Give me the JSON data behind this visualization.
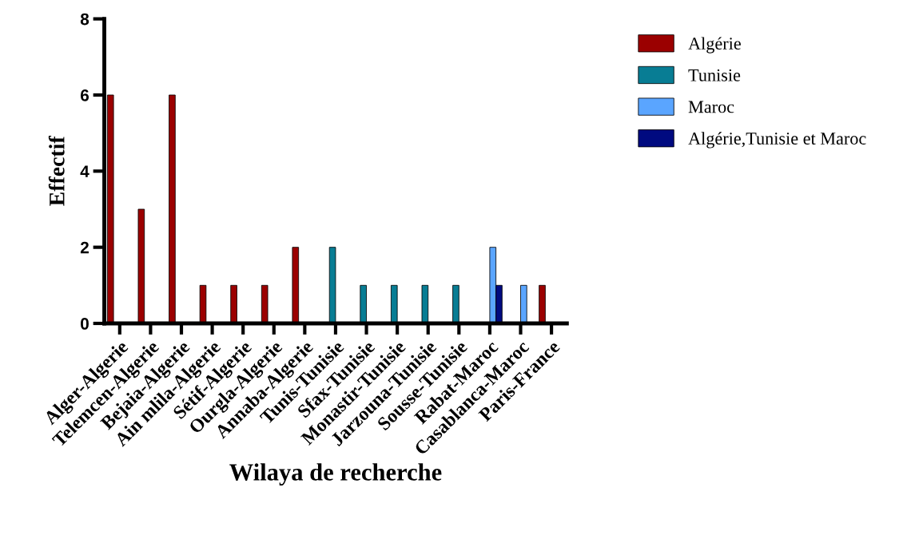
{
  "chart_data": {
    "type": "bar",
    "xlabel": "Wilaya de recherche",
    "ylabel": "Effectif",
    "categories": [
      "Alger-Algerie",
      "Telemcen-Algerie",
      "Bejaia-Algerie",
      "Ain mlila-Algerie",
      "Sétif-Algerie",
      "Ourgla-Algerie",
      "Annaba-Algerie",
      "Tunis-Tunisie",
      "Sfax-Tunisie",
      "Monastir-Tunisie",
      "Jarzouna-Tunisie",
      "Sousse-Tunisie",
      "Rabat-Maroc",
      "Casablanca-Maroc",
      "Paris-France"
    ],
    "series": [
      {
        "name": "Algérie",
        "color": "#9b0000",
        "values": [
          6,
          3,
          6,
          1,
          1,
          1,
          2,
          null,
          null,
          null,
          null,
          null,
          null,
          null,
          1
        ]
      },
      {
        "name": "Tunisie",
        "color": "#087d94",
        "values": [
          null,
          null,
          null,
          null,
          null,
          null,
          null,
          2,
          1,
          1,
          1,
          1,
          null,
          null,
          null
        ]
      },
      {
        "name": "Maroc",
        "color": "#5aa5ff",
        "values": [
          null,
          null,
          null,
          null,
          null,
          null,
          null,
          null,
          null,
          null,
          null,
          null,
          2,
          1,
          null
        ]
      },
      {
        "name": "Algérie,Tunisie et Maroc",
        "color": "#000a80",
        "values": [
          null,
          null,
          null,
          null,
          null,
          null,
          null,
          null,
          null,
          null,
          null,
          null,
          1,
          null,
          null
        ]
      }
    ],
    "ylim": [
      0,
      8
    ],
    "yticks": [
      0,
      2,
      4,
      6,
      8
    ],
    "grid": false,
    "legend": "right"
  }
}
